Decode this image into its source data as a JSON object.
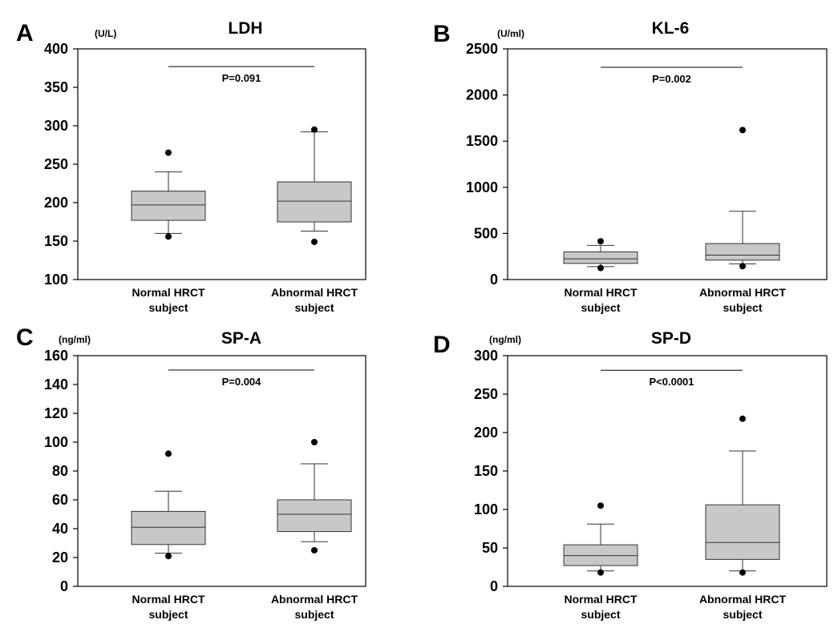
{
  "chart_data": [
    {
      "type": "box",
      "panel": "A",
      "title": "LDH",
      "unit": "(U/L)",
      "ylim": [
        100,
        400
      ],
      "yticks": [
        100,
        150,
        200,
        250,
        300,
        350,
        400
      ],
      "categories": [
        {
          "line1": "Normal HRCT",
          "line2": "subject",
          "whisker_low": 160,
          "q1": 177,
          "median": 197,
          "q3": 215,
          "whisker_high": 240,
          "outliers": [
            265,
            156
          ]
        },
        {
          "line1": "Abnormal HRCT",
          "line2": "subject",
          "whisker_low": 163,
          "q1": 175,
          "median": 202,
          "q3": 227,
          "whisker_high": 292,
          "outliers": [
            295,
            149
          ]
        }
      ],
      "p_value": "P=0.091",
      "sig_y": 377
    },
    {
      "type": "box",
      "panel": "B",
      "title": "KL-6",
      "unit": "(U/ml)",
      "ylim": [
        0,
        2500
      ],
      "yticks": [
        0,
        500,
        1000,
        1500,
        2000,
        2500
      ],
      "categories": [
        {
          "line1": "Normal HRCT",
          "line2": "subject",
          "whisker_low": 140,
          "q1": 175,
          "median": 225,
          "q3": 300,
          "whisker_high": 370,
          "outliers": [
            415,
            125
          ]
        },
        {
          "line1": "Abnormal HRCT",
          "line2": "subject",
          "whisker_low": 170,
          "q1": 210,
          "median": 265,
          "q3": 390,
          "whisker_high": 740,
          "outliers": [
            1620,
            145
          ]
        }
      ],
      "p_value": "P=0.002",
      "sig_y": 2300
    },
    {
      "type": "box",
      "panel": "C",
      "title": "SP-A",
      "unit": "(ng/ml)",
      "ylim": [
        0,
        160
      ],
      "yticks": [
        0,
        20,
        40,
        60,
        80,
        100,
        120,
        140,
        160
      ],
      "categories": [
        {
          "line1": "Normal HRCT",
          "line2": "subject",
          "whisker_low": 23,
          "q1": 29,
          "median": 41,
          "q3": 52,
          "whisker_high": 66,
          "outliers": [
            92,
            21
          ]
        },
        {
          "line1": "Abnormal HRCT",
          "line2": "subject",
          "whisker_low": 31,
          "q1": 38,
          "median": 50,
          "q3": 60,
          "whisker_high": 85,
          "outliers": [
            100,
            25
          ]
        }
      ],
      "p_value": "P=0.004",
      "sig_y": 150
    },
    {
      "type": "box",
      "panel": "D",
      "title": "SP-D",
      "unit": "(ng/ml)",
      "ylim": [
        0,
        300
      ],
      "yticks": [
        0,
        50,
        100,
        150,
        200,
        250,
        300
      ],
      "categories": [
        {
          "line1": "Normal HRCT",
          "line2": "subject",
          "whisker_low": 20,
          "q1": 27,
          "median": 40,
          "q3": 54,
          "whisker_high": 81,
          "outliers": [
            105,
            18
          ]
        },
        {
          "line1": "Abnormal HRCT",
          "line2": "subject",
          "whisker_low": 20,
          "q1": 35,
          "median": 57,
          "q3": 106,
          "whisker_high": 176,
          "outliers": [
            218,
            18
          ]
        }
      ],
      "p_value": "P<0.0001",
      "sig_y": 281
    }
  ]
}
